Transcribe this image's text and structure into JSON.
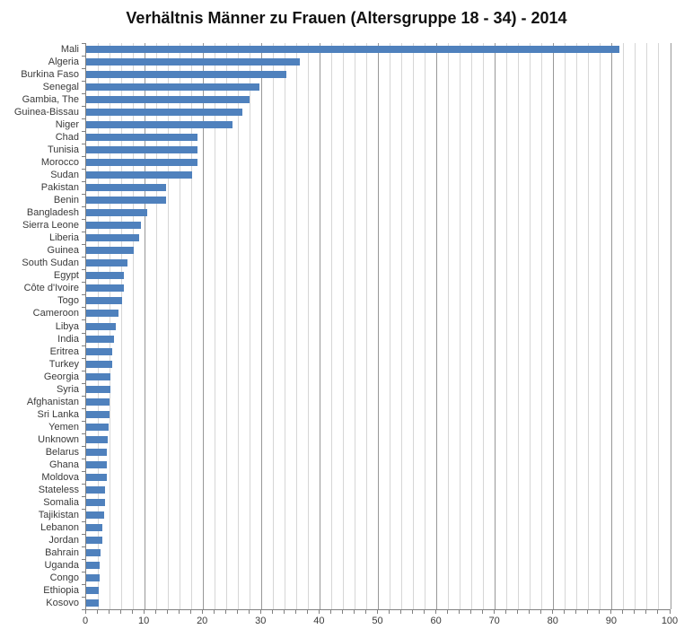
{
  "chart_data": {
    "type": "bar",
    "orientation": "horizontal",
    "title": "Verhältnis Männer zu Frauen (Altersgruppe 18 - 34) - 2014",
    "xlabel": "",
    "ylabel": "",
    "xlim": [
      0,
      100
    ],
    "x_major_step": 10,
    "x_minor_step": 2,
    "x_major_ticks": [
      0,
      10,
      20,
      30,
      40,
      50,
      60,
      70,
      80,
      90,
      100
    ],
    "grid": true,
    "legend": false,
    "bar_color": "#4F81BD",
    "minor_grid_color": "#d6d6d6",
    "major_grid_color": "#989898",
    "axis_color": "#808080",
    "label_color": "#3a3a3a",
    "categories": [
      "Mali",
      "Algeria",
      "Burkina Faso",
      "Senegal",
      "Gambia, The",
      "Guinea-Bissau",
      "Niger",
      "Chad",
      "Tunisia",
      "Morocco",
      "Sudan",
      "Pakistan",
      "Benin",
      "Bangladesh",
      "Sierra Leone",
      "Liberia",
      "Guinea",
      "South Sudan",
      "Egypt",
      "Côte d'Ivoire",
      "Togo",
      "Cameroon",
      "Libya",
      "India",
      "Eritrea",
      "Turkey",
      "Georgia",
      "Syria",
      "Afghanistan",
      "Sri Lanka",
      "Yemen",
      "Unknown",
      "Belarus",
      "Ghana",
      "Moldova",
      "Stateless",
      "Somalia",
      "Tajikistan",
      "Lebanon",
      "Jordan",
      "Bahrain",
      "Uganda",
      "Congo",
      "Ethiopia",
      "Kosovo"
    ],
    "values": [
      91.2,
      36.6,
      34.2,
      29.7,
      27.9,
      26.7,
      25.1,
      19.1,
      19.1,
      19.0,
      18.2,
      13.6,
      13.6,
      10.4,
      9.4,
      9.1,
      8.1,
      7.1,
      6.5,
      6.5,
      6.2,
      5.6,
      5.0,
      4.7,
      4.5,
      4.5,
      4.2,
      4.1,
      4.0,
      4.0,
      3.9,
      3.7,
      3.6,
      3.5,
      3.5,
      3.3,
      3.2,
      3.0,
      2.8,
      2.7,
      2.4,
      2.3,
      2.3,
      2.2,
      2.1
    ]
  }
}
